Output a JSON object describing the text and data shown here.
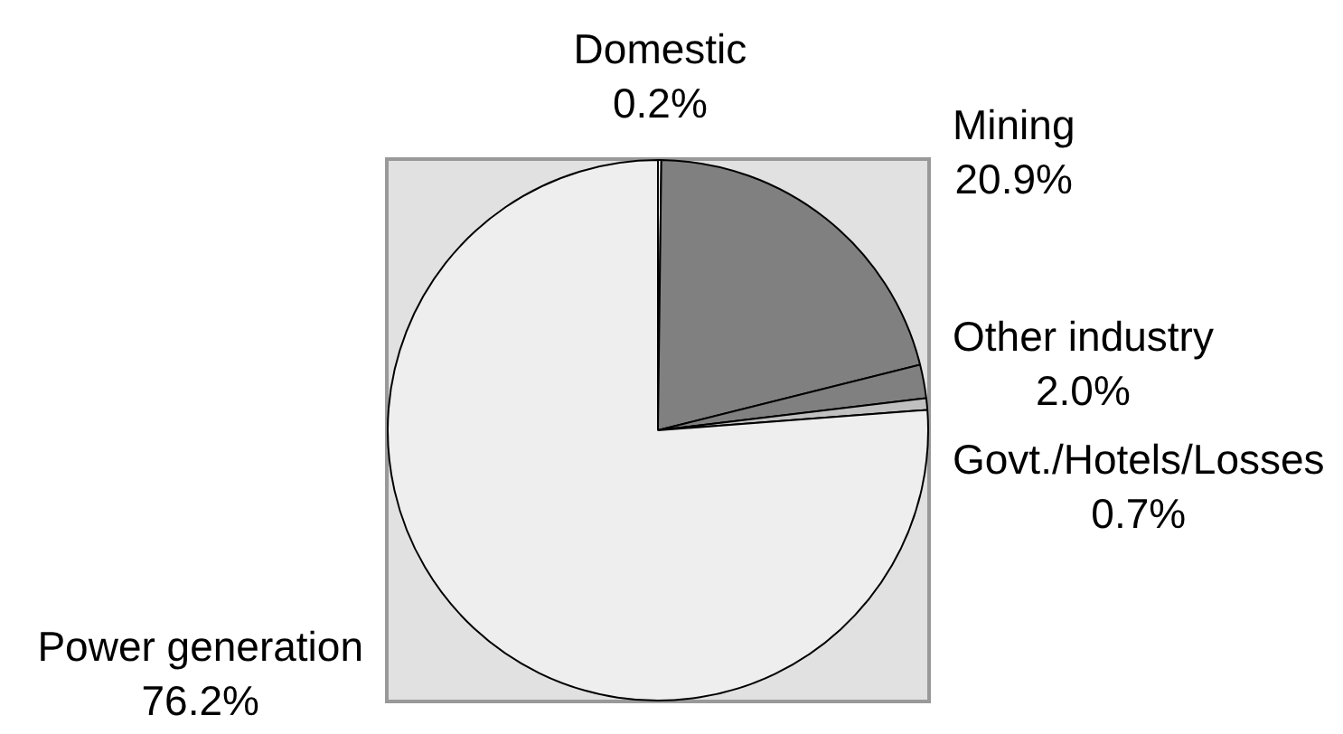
{
  "chart_data": {
    "type": "pie",
    "categories": [
      "Domestic",
      "Mining",
      "Other industry",
      "Govt./Hotels/Losses",
      "Power generation"
    ],
    "values": [
      0.2,
      20.9,
      2.0,
      0.7,
      76.2
    ],
    "colors": [
      "#ffffff",
      "#808080",
      "#808080",
      "#c0c0c0",
      "#eeeeee"
    ],
    "value_labels": [
      "0.2%",
      "20.9%",
      "2.0%",
      "0.7%",
      "76.2%"
    ]
  }
}
